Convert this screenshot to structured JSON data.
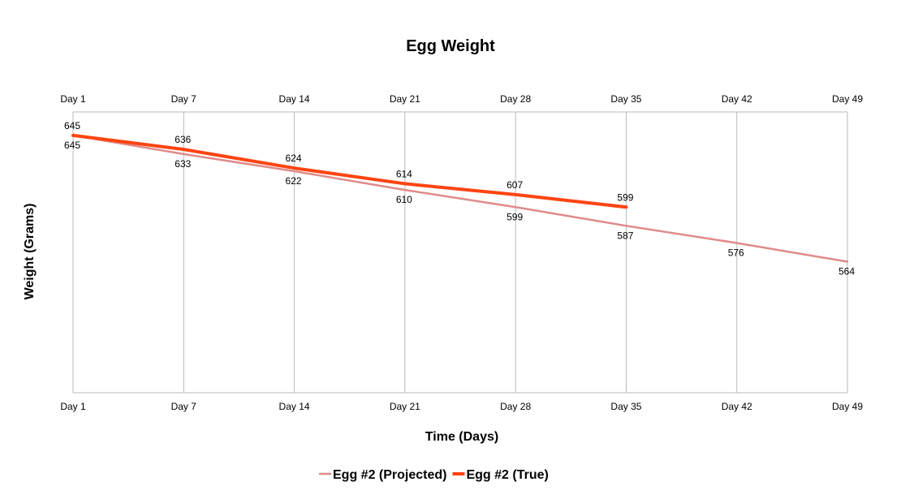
{
  "chart_data": {
    "type": "line",
    "title": "Egg Weight",
    "xlabel": "Time (Days)",
    "ylabel": "Weight (Grams)",
    "categories": [
      "Day 1",
      "Day 7",
      "Day 14",
      "Day 21",
      "Day 28",
      "Day 35",
      "Day 42",
      "Day 49"
    ],
    "ylim": [
      480,
      660
    ],
    "grid": true,
    "legend_position": "bottom",
    "series": [
      {
        "name": "Egg #2 (Projected)",
        "color": "#e08a8a",
        "values": [
          645,
          633,
          622,
          610,
          599,
          587,
          576,
          564
        ]
      },
      {
        "name": "Egg #2 (True)",
        "color": "#ff4411",
        "values": [
          645,
          636,
          624,
          614,
          607,
          599,
          null,
          null
        ]
      }
    ]
  }
}
